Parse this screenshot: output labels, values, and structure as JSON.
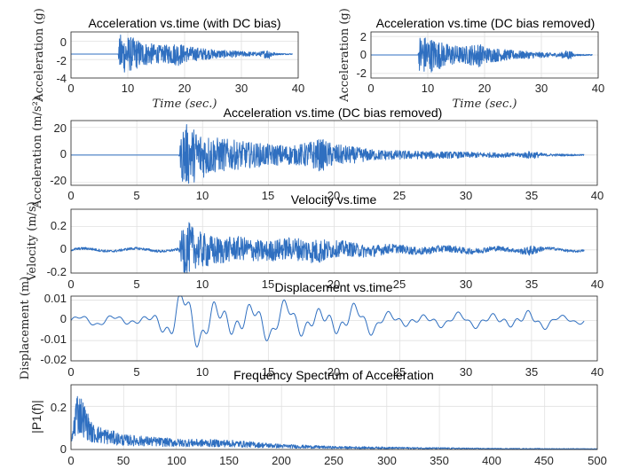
{
  "chart_data": [
    {
      "type": "line",
      "title": "Acceleration vs.time (with DC bias)",
      "xlabel": "Time (sec.)",
      "ylabel": "Acceleration (g)",
      "xlim": [
        0,
        40
      ],
      "ylim": [
        -4,
        1
      ],
      "xticks": [
        "0",
        "10",
        "20",
        "30",
        "40"
      ],
      "yticks": [
        "0",
        "-2",
        "-4"
      ],
      "grid": true,
      "series": [
        {
          "name": "acceleration",
          "color": "#2f6fc0",
          "baseline": -1.4,
          "envelope": [
            [
              0,
              0.0
            ],
            [
              8.3,
              0.0
            ],
            [
              8.6,
              2.2
            ],
            [
              10,
              2.0
            ],
            [
              13,
              1.3
            ],
            [
              16,
              0.9
            ],
            [
              19,
              1.3
            ],
            [
              20,
              0.9
            ],
            [
              25,
              0.5
            ],
            [
              30,
              0.3
            ],
            [
              33,
              0.2
            ],
            [
              34.8,
              0.55
            ],
            [
              36,
              0.1
            ],
            [
              39,
              0.05
            ]
          ]
        }
      ]
    },
    {
      "type": "line",
      "title": "Acceleration vs.time (DC bias removed)",
      "xlabel": "Time (sec.)",
      "ylabel": "Acceleration (g)",
      "xlim": [
        0,
        40
      ],
      "ylim": [
        -2.5,
        2.5
      ],
      "xticks": [
        "0",
        "10",
        "20",
        "30",
        "40"
      ],
      "yticks": [
        "2",
        "0",
        "-2"
      ],
      "grid": true,
      "series": [
        {
          "name": "acceleration",
          "color": "#2f6fc0",
          "baseline": 0,
          "envelope": [
            [
              0,
              0.0
            ],
            [
              8.3,
              0.0
            ],
            [
              8.6,
              2.2
            ],
            [
              10,
              2.0
            ],
            [
              13,
              1.3
            ],
            [
              16,
              0.9
            ],
            [
              19,
              1.3
            ],
            [
              20,
              0.9
            ],
            [
              25,
              0.5
            ],
            [
              30,
              0.3
            ],
            [
              33,
              0.2
            ],
            [
              34.8,
              0.55
            ],
            [
              36,
              0.1
            ],
            [
              39,
              0.05
            ]
          ]
        }
      ]
    },
    {
      "type": "line",
      "title": "Acceleration vs.time (DC bias removed)",
      "xlabel": "",
      "ylabel": "Acceleration (m/s²)",
      "xlim": [
        0,
        40
      ],
      "ylim": [
        -22,
        25
      ],
      "xticks": [
        "0",
        "5",
        "10",
        "15",
        "20",
        "25",
        "30",
        "35",
        "40"
      ],
      "yticks": [
        "20",
        "0",
        "-20"
      ],
      "grid": true,
      "series": [
        {
          "name": "acceleration",
          "color": "#2f6fc0",
          "baseline": 0,
          "envelope": [
            [
              0,
              0.0
            ],
            [
              8.2,
              0.0
            ],
            [
              8.5,
              24
            ],
            [
              9.5,
              19
            ],
            [
              11,
              13
            ],
            [
              13,
              10
            ],
            [
              15,
              8
            ],
            [
              17,
              7
            ],
            [
              19,
              12
            ],
            [
              20,
              8
            ],
            [
              23,
              4
            ],
            [
              26,
              3
            ],
            [
              30,
              2.2
            ],
            [
              34,
              1.5
            ],
            [
              35,
              3
            ],
            [
              36,
              1
            ],
            [
              39,
              0.5
            ]
          ]
        }
      ]
    },
    {
      "type": "line",
      "title": "Velocity vs.time",
      "xlabel": "",
      "ylabel": "Velocity (m/s)",
      "xlim": [
        0,
        40
      ],
      "ylim": [
        -0.2,
        0.35
      ],
      "xticks": [
        "0",
        "5",
        "10",
        "15",
        "20",
        "25",
        "30",
        "35",
        "40"
      ],
      "yticks": [
        "0.2",
        "0",
        "-0.2"
      ],
      "grid": true,
      "series": [
        {
          "name": "velocity",
          "color": "#2f6fc0",
          "baseline": 0,
          "envelope": [
            [
              0,
              0.012
            ],
            [
              8.2,
              0.012
            ],
            [
              8.6,
              0.3
            ],
            [
              9.5,
              0.18
            ],
            [
              12,
              0.12
            ],
            [
              15,
              0.1
            ],
            [
              19,
              0.12
            ],
            [
              20,
              0.08
            ],
            [
              25,
              0.04
            ],
            [
              30,
              0.03
            ],
            [
              34,
              0.02
            ],
            [
              35,
              0.05
            ],
            [
              36,
              0.015
            ],
            [
              39,
              0.01
            ]
          ]
        }
      ]
    },
    {
      "type": "line",
      "title": "Displacement vs.time",
      "xlabel": "",
      "ylabel": "Displacement (m)",
      "xlim": [
        0,
        40
      ],
      "ylim": [
        -0.02,
        0.012
      ],
      "xticks": [
        "0",
        "5",
        "10",
        "15",
        "20",
        "25",
        "30",
        "35",
        "40"
      ],
      "yticks": [
        "0.01",
        "0",
        "-0.01",
        "-0.02"
      ],
      "grid": true,
      "series": [
        {
          "name": "displacement",
          "color": "#2f6fc0",
          "baseline": 0,
          "envelope": [
            [
              0,
              0.002
            ],
            [
              6,
              0.003
            ],
            [
              8.5,
              0.013
            ],
            [
              11,
              0.011
            ],
            [
              14,
              0.009
            ],
            [
              17,
              0.008
            ],
            [
              21,
              0.008
            ],
            [
              24,
              0.004
            ],
            [
              30,
              0.003
            ],
            [
              35,
              0.005
            ],
            [
              37,
              0.002
            ],
            [
              39,
              0.002
            ]
          ]
        }
      ]
    },
    {
      "type": "line",
      "title": "Frequency Spectrum of Acceleration",
      "xlabel": "",
      "ylabel": "|P1(f)|",
      "xlim": [
        0,
        500
      ],
      "ylim": [
        0,
        0.3
      ],
      "xticks": [
        "0",
        "50",
        "100",
        "150",
        "200",
        "250",
        "300",
        "350",
        "400",
        "450",
        "500"
      ],
      "yticks": [
        "0.2",
        "0"
      ],
      "grid": true,
      "series": [
        {
          "name": "spectrum",
          "color": "#2f6fc0",
          "baseline": 0,
          "envelope": [
            [
              0,
              0.02
            ],
            [
              5,
              0.28
            ],
            [
              10,
              0.25
            ],
            [
              20,
              0.12
            ],
            [
              50,
              0.07
            ],
            [
              100,
              0.05
            ],
            [
              150,
              0.045
            ],
            [
              200,
              0.025
            ],
            [
              250,
              0.015
            ],
            [
              300,
              0.012
            ],
            [
              400,
              0.006
            ],
            [
              500,
              0.004
            ]
          ]
        }
      ]
    }
  ]
}
